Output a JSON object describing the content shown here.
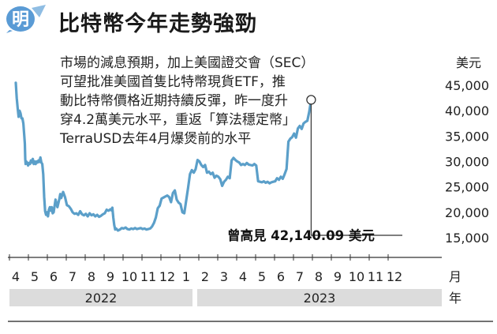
{
  "header": {
    "logo_char": "明",
    "title": "比特幣今年走勢強勁"
  },
  "description_lines": [
    "市場的減息預期，加上美國證交會（SEC）",
    "可望批准美國首隻比特幣現貨ETF，推",
    "動比特幣價格近期持續反彈，昨一度升",
    "穿4.2萬美元水平，重返「算法穩定幣」",
    "TerraUSD去年4月爆煲前的水平"
  ],
  "colors": {
    "line": "#5b9fc9",
    "year_band": "#dcdcdc",
    "brand": "#5a9bd5"
  },
  "chart_data": {
    "type": "line",
    "title": "比特幣今年走勢強勁",
    "y_unit": "美元",
    "x_unit_month": "月",
    "x_unit_year": "年",
    "ylim": [
      15000,
      45000
    ],
    "y_ticks": [
      "45,000",
      "40,000",
      "35,000",
      "30,000",
      "25,000",
      "20,000",
      "15,000"
    ],
    "y_tick_values": [
      45000,
      40000,
      35000,
      30000,
      25000,
      20000,
      15000
    ],
    "x_months": [
      "4",
      "5",
      "6",
      "7",
      "8",
      "9",
      "10",
      "11",
      "12",
      "1",
      "2",
      "3",
      "4",
      "5",
      "6",
      "7",
      "8",
      "9",
      "10",
      "11",
      "12"
    ],
    "years": [
      "2022",
      "2023"
    ],
    "annotation": "曾高見 42,140.09 美元",
    "peak_value": 42140.09,
    "grid": false,
    "series": [
      {
        "values": [
          [
            0,
            45500
          ],
          [
            0.05,
            42500
          ],
          [
            0.1,
            40500
          ],
          [
            0.15,
            38800
          ],
          [
            0.2,
            40000
          ],
          [
            0.25,
            39500
          ],
          [
            0.3,
            38500
          ],
          [
            0.35,
            38500
          ],
          [
            0.4,
            37500
          ],
          [
            0.45,
            35000
          ],
          [
            0.48,
            33500
          ],
          [
            0.5,
            30500
          ],
          [
            0.52,
            29500
          ],
          [
            0.55,
            30000
          ],
          [
            0.6,
            29800
          ],
          [
            0.65,
            29200
          ],
          [
            0.7,
            29700
          ],
          [
            0.75,
            29500
          ],
          [
            0.8,
            30200
          ],
          [
            0.85,
            29800
          ],
          [
            0.9,
            30500
          ],
          [
            0.95,
            29500
          ],
          [
            1.0,
            30000
          ],
          [
            1.05,
            29500
          ],
          [
            1.1,
            30000
          ],
          [
            1.15,
            29800
          ],
          [
            1.2,
            30200
          ],
          [
            1.25,
            29900
          ],
          [
            1.3,
            30800
          ],
          [
            1.35,
            29800
          ],
          [
            1.4,
            29500
          ],
          [
            1.45,
            27500
          ],
          [
            1.5,
            23000
          ],
          [
            1.55,
            20200
          ],
          [
            1.6,
            19500
          ],
          [
            1.65,
            20000
          ],
          [
            1.7,
            19200
          ],
          [
            1.75,
            20500
          ],
          [
            1.8,
            21000
          ],
          [
            1.85,
            20300
          ],
          [
            1.9,
            21000
          ],
          [
            1.95,
            19800
          ],
          [
            2.0,
            20000
          ],
          [
            2.1,
            22500
          ],
          [
            2.2,
            21000
          ],
          [
            2.3,
            22600
          ],
          [
            2.35,
            23600
          ],
          [
            2.4,
            22800
          ],
          [
            2.5,
            24000
          ],
          [
            2.6,
            23000
          ],
          [
            2.7,
            21400
          ],
          [
            2.8,
            21200
          ],
          [
            2.9,
            20700
          ],
          [
            3.0,
            20000
          ],
          [
            3.1,
            19700
          ],
          [
            3.2,
            19800
          ],
          [
            3.3,
            19500
          ],
          [
            3.4,
            20200
          ],
          [
            3.5,
            19600
          ],
          [
            3.6,
            19400
          ],
          [
            3.7,
            19700
          ],
          [
            3.8,
            19200
          ],
          [
            3.9,
            19800
          ],
          [
            4.0,
            19400
          ],
          [
            4.1,
            19600
          ],
          [
            4.2,
            19200
          ],
          [
            4.3,
            19500
          ],
          [
            4.4,
            19100
          ],
          [
            4.5,
            19300
          ],
          [
            4.6,
            19600
          ],
          [
            4.7,
            19800
          ],
          [
            4.8,
            20500
          ],
          [
            4.9,
            20300
          ],
          [
            5.0,
            20600
          ],
          [
            5.05,
            20400
          ],
          [
            5.1,
            20900
          ],
          [
            5.15,
            19000
          ],
          [
            5.2,
            17500
          ],
          [
            5.25,
            16600
          ],
          [
            5.3,
            16800
          ],
          [
            5.4,
            16400
          ],
          [
            5.5,
            16600
          ],
          [
            5.6,
            16900
          ],
          [
            5.7,
            16800
          ],
          [
            5.8,
            17000
          ],
          [
            5.9,
            16700
          ],
          [
            6.0,
            16600
          ],
          [
            6.1,
            16800
          ],
          [
            6.2,
            16700
          ],
          [
            6.3,
            16900
          ],
          [
            6.4,
            16700
          ],
          [
            6.5,
            16800
          ],
          [
            6.6,
            16900
          ],
          [
            6.7,
            16700
          ],
          [
            6.8,
            16800
          ],
          [
            6.9,
            16600
          ],
          [
            7.0,
            16700
          ],
          [
            7.1,
            16800
          ],
          [
            7.2,
            17200
          ],
          [
            7.3,
            17900
          ],
          [
            7.4,
            19000
          ],
          [
            7.5,
            20800
          ],
          [
            7.6,
            21300
          ],
          [
            7.7,
            22700
          ],
          [
            7.8,
            22900
          ],
          [
            7.9,
            23100
          ],
          [
            8.0,
            23300
          ],
          [
            8.1,
            23000
          ],
          [
            8.2,
            22000
          ],
          [
            8.3,
            23800
          ],
          [
            8.4,
            24300
          ],
          [
            8.5,
            22500
          ],
          [
            8.6,
            21900
          ],
          [
            8.7,
            21600
          ],
          [
            8.8,
            20000
          ],
          [
            8.9,
            19800
          ],
          [
            9.0,
            22300
          ],
          [
            9.1,
            24800
          ],
          [
            9.2,
            27500
          ],
          [
            9.3,
            28300
          ],
          [
            9.4,
            27800
          ],
          [
            9.5,
            28500
          ],
          [
            9.6,
            30300
          ],
          [
            9.7,
            30000
          ],
          [
            9.8,
            29300
          ],
          [
            9.9,
            28900
          ],
          [
            10.0,
            29300
          ],
          [
            10.1,
            27800
          ],
          [
            10.2,
            28000
          ],
          [
            10.3,
            27500
          ],
          [
            10.4,
            27800
          ],
          [
            10.5,
            26800
          ],
          [
            10.6,
            27200
          ],
          [
            10.7,
            27000
          ],
          [
            10.8,
            26500
          ],
          [
            10.9,
            25200
          ],
          [
            11.0,
            26000
          ],
          [
            11.1,
            26400
          ],
          [
            11.2,
            27000
          ],
          [
            11.3,
            26700
          ],
          [
            11.4,
            30200
          ],
          [
            11.5,
            30700
          ],
          [
            11.6,
            30300
          ],
          [
            11.7,
            30000
          ],
          [
            11.8,
            29800
          ],
          [
            11.9,
            29300
          ],
          [
            12.0,
            29500
          ],
          [
            12.1,
            29300
          ],
          [
            12.2,
            29700
          ],
          [
            12.3,
            29400
          ],
          [
            12.4,
            29300
          ],
          [
            12.5,
            29200
          ],
          [
            12.6,
            29500
          ],
          [
            12.7,
            29200
          ],
          [
            12.8,
            26100
          ],
          [
            12.9,
            26000
          ],
          [
            13.0,
            25900
          ],
          [
            13.1,
            26100
          ],
          [
            13.2,
            25800
          ],
          [
            13.3,
            26000
          ],
          [
            13.4,
            25700
          ],
          [
            13.5,
            25900
          ],
          [
            13.6,
            26000
          ],
          [
            13.7,
            26100
          ],
          [
            13.8,
            26700
          ],
          [
            13.9,
            26400
          ],
          [
            14.0,
            27000
          ],
          [
            14.1,
            26600
          ],
          [
            14.2,
            27500
          ],
          [
            14.3,
            28500
          ],
          [
            14.4,
            33900
          ],
          [
            14.5,
            34500
          ],
          [
            14.6,
            34800
          ],
          [
            14.7,
            35500
          ],
          [
            14.8,
            34700
          ],
          [
            14.9,
            36500
          ],
          [
            15.0,
            37000
          ],
          [
            15.1,
            36400
          ],
          [
            15.2,
            37500
          ],
          [
            15.3,
            37800
          ],
          [
            15.4,
            38000
          ],
          [
            15.5,
            39800
          ],
          [
            15.6,
            42140
          ]
        ]
      }
    ]
  }
}
